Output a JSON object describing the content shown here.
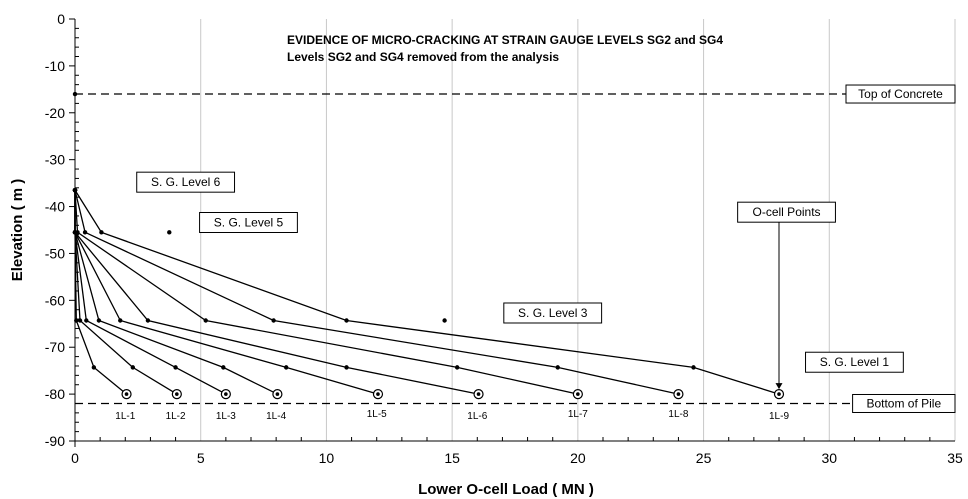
{
  "chart_data": {
    "type": "line",
    "title_lines": [
      "EVIDENCE OF MICRO-CRACKING AT STRAIN GAUGE LEVELS SG2 and SG4",
      "Levels SG2 and SG4 removed from the analysis"
    ],
    "xlabel": "Lower O-cell Load  ( MN )",
    "ylabel": "Elevation  ( m )",
    "xlim": [
      0,
      35
    ],
    "ylim": [
      -90,
      0
    ],
    "x_ticks": [
      0,
      5,
      10,
      15,
      20,
      25,
      30,
      35
    ],
    "y_ticks": [
      0,
      -10,
      -20,
      -30,
      -40,
      -50,
      -60,
      -70,
      -80,
      -90
    ],
    "grid": "vertical",
    "reference_lines": [
      {
        "label": "Top of Concrete",
        "y": -16
      },
      {
        "label": "Bottom of Pile",
        "y": -82
      }
    ],
    "series": [
      {
        "name": "1L-1",
        "points": [
          [
            0,
            -36.5
          ],
          [
            0,
            -45.5
          ],
          [
            0.05,
            -64.3
          ],
          [
            0.75,
            -74.3
          ],
          [
            2.05,
            -80
          ]
        ]
      },
      {
        "name": "1L-2",
        "points": [
          [
            0,
            -36.5
          ],
          [
            0,
            -45.5
          ],
          [
            0.2,
            -64.3
          ],
          [
            2.3,
            -74.3
          ],
          [
            4.05,
            -80
          ]
        ]
      },
      {
        "name": "1L-3",
        "points": [
          [
            0,
            -36.5
          ],
          [
            0,
            -45.5
          ],
          [
            0.45,
            -64.3
          ],
          [
            4.0,
            -74.3
          ],
          [
            6.0,
            -80
          ]
        ]
      },
      {
        "name": "1L-4",
        "points": [
          [
            0,
            -36.5
          ],
          [
            0,
            -45.5
          ],
          [
            0.95,
            -64.3
          ],
          [
            5.9,
            -74.3
          ],
          [
            8.05,
            -80
          ]
        ]
      },
      {
        "name": "1L-5",
        "points": [
          [
            0,
            -36.5
          ],
          [
            0,
            -45.5
          ],
          [
            1.8,
            -64.3
          ],
          [
            8.4,
            -74.3
          ],
          [
            12.05,
            -80
          ]
        ]
      },
      {
        "name": "1L-6",
        "points": [
          [
            0,
            -36.5
          ],
          [
            0,
            -45.5
          ],
          [
            2.9,
            -64.3
          ],
          [
            10.8,
            -74.3
          ],
          [
            16.05,
            -80
          ]
        ]
      },
      {
        "name": "1L-7",
        "points": [
          [
            0,
            -36.5
          ],
          [
            0.1,
            -45.5
          ],
          [
            5.2,
            -64.3
          ],
          [
            15.2,
            -74.3
          ],
          [
            20.0,
            -80
          ]
        ]
      },
      {
        "name": "1L-8",
        "points": [
          [
            0,
            -36.5
          ],
          [
            0.4,
            -45.5
          ],
          [
            7.9,
            -64.3
          ],
          [
            19.2,
            -74.3
          ],
          [
            24.0,
            -80
          ]
        ]
      },
      {
        "name": "1L-9",
        "points": [
          [
            0,
            -36.5
          ],
          [
            1.05,
            -45.5
          ],
          [
            10.8,
            -64.3
          ],
          [
            24.6,
            -74.3
          ],
          [
            28.0,
            -80
          ]
        ]
      }
    ],
    "extra_points": [
      [
        0,
        -16
      ],
      [
        3.75,
        -45.5
      ],
      [
        14.7,
        -64.3
      ]
    ],
    "series_label_x": [
      2.0,
      4.0,
      6.0,
      8.0,
      12.0,
      16.0,
      20.0,
      24.0,
      28.0
    ],
    "annotations": [
      {
        "text": "S. G. Level 6",
        "x": 4.4,
        "y": -34.8
      },
      {
        "text": "S. G. Level 5",
        "x": 6.9,
        "y": -43.4
      },
      {
        "text": "S. G. Level 3",
        "x": 19.0,
        "y": -62.7
      },
      {
        "text": "S. G. Level 1",
        "x": 31.0,
        "y": -73.2
      },
      {
        "text": "O-cell Points",
        "x": 28.3,
        "y": -41.2
      }
    ]
  }
}
